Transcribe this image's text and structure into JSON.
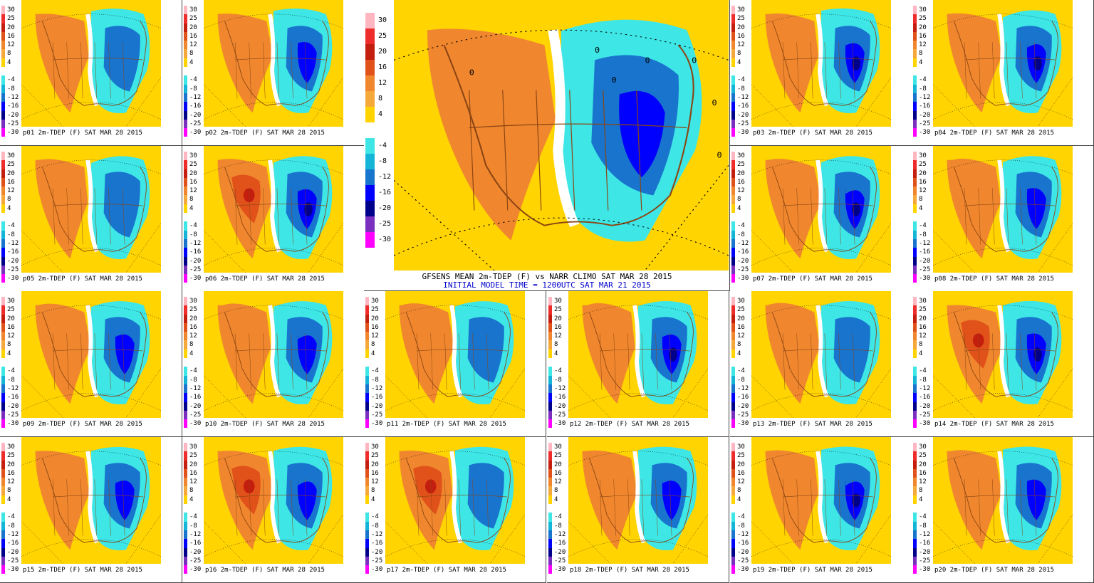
{
  "legend": {
    "levels": [
      "30",
      "25",
      "20",
      "16",
      "12",
      "8",
      "4",
      "",
      "-4",
      "-8",
      "-12",
      "-16",
      "-20",
      "-25",
      "-30"
    ],
    "colors": [
      "#ffb6c1",
      "#ee2c2c",
      "#c41e0f",
      "#e0521a",
      "#f0872e",
      "#f5a93a",
      "#ffd400",
      "#ffffff",
      "#3ee6e6",
      "#15b5d8",
      "#1874cd",
      "#0000ff",
      "#00008b",
      "#7b2fbe",
      "#ff00ff"
    ]
  },
  "mean": {
    "title": "GFSENS MEAN 2m-TDEP (F) vs NARR CLIMO SAT MAR 28 2015",
    "subtitle": "INITIAL MODEL TIME = 1200UTC SAT MAR 21 2015",
    "title_color": "#000000",
    "subtitle_color": "#0000cc",
    "zero_contour_labels": [
      "0",
      "0",
      "0",
      "0",
      "0",
      "0",
      "0"
    ]
  },
  "members": [
    {
      "label": "p01 2m-TDEP (F) SAT MAR 28 2015",
      "warm": 0.55,
      "cold": 0.6
    },
    {
      "label": "p02 2m-TDEP (F) SAT MAR 28 2015",
      "warm": 0.35,
      "cold": 0.8
    },
    {
      "label": "p03 2m-TDEP (F) SAT MAR 28 2015",
      "warm": 0.6,
      "cold": 0.85
    },
    {
      "label": "p04 2m-TDEP (F) SAT MAR 28 2015",
      "warm": 0.6,
      "cold": 0.9
    },
    {
      "label": "p05 2m-TDEP (F) SAT MAR 28 2015",
      "warm": 0.5,
      "cold": 0.55
    },
    {
      "label": "p06 2m-TDEP (F) SAT MAR 28 2015",
      "warm": 0.8,
      "cold": 0.85
    },
    {
      "label": "p07 2m-TDEP (F) SAT MAR 28 2015",
      "warm": 0.6,
      "cold": 0.9
    },
    {
      "label": "p08 2m-TDEP (F) SAT MAR 28 2015",
      "warm": 0.55,
      "cold": 0.7
    },
    {
      "label": "p09 2m-TDEP (F) SAT MAR 28 2015",
      "warm": 0.55,
      "cold": 0.7
    },
    {
      "label": "p10 2m-TDEP (F) SAT MAR 28 2015",
      "warm": 0.55,
      "cold": 0.8
    },
    {
      "label": "p11 2m-TDEP (F) SAT MAR 28 2015",
      "warm": 0.5,
      "cold": 0.5
    },
    {
      "label": "p12 2m-TDEP (F) SAT MAR 28 2015",
      "warm": 0.55,
      "cold": 0.85
    },
    {
      "label": "p13 2m-TDEP (F) SAT MAR 28 2015",
      "warm": 0.5,
      "cold": 0.6
    },
    {
      "label": "p14 2m-TDEP (F) SAT MAR 28 2015",
      "warm": 0.75,
      "cold": 0.9
    },
    {
      "label": "p15 2m-TDEP (F) SAT MAR 28 2015",
      "warm": 0.5,
      "cold": 0.75
    },
    {
      "label": "p16 2m-TDEP (F) SAT MAR 28 2015",
      "warm": 0.8,
      "cold": 0.7
    },
    {
      "label": "p17 2m-TDEP (F) SAT MAR 28 2015",
      "warm": 0.75,
      "cold": 0.6
    },
    {
      "label": "p18 2m-TDEP (F) SAT MAR 28 2015",
      "warm": 0.45,
      "cold": 0.75
    },
    {
      "label": "p19 2m-TDEP (F) SAT MAR 28 2015",
      "warm": 0.5,
      "cold": 0.85
    },
    {
      "label": "p20 2m-TDEP (F) SAT MAR 28 2015",
      "warm": 0.55,
      "cold": 0.8
    }
  ]
}
